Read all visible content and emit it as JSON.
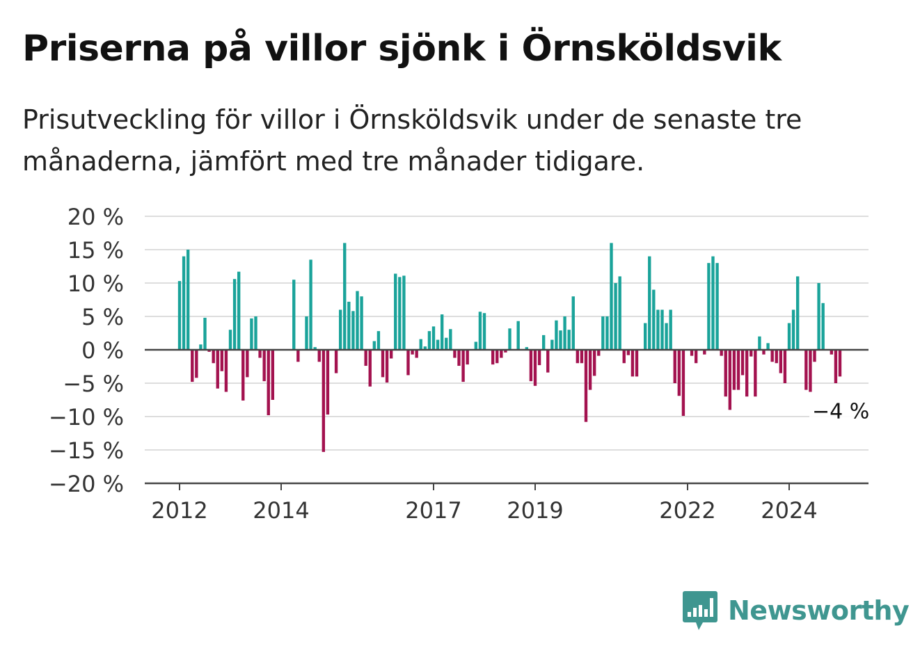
{
  "title": "Priserna på villor sjönk i Örnsköldsvik",
  "subtitle": "Prisutveckling för villor i Örnsköldsvik under de senaste tre månaderna, jämfört med tre månader tidigare.",
  "brand": "Newsworthy",
  "colors": {
    "positive": "#1aa39a",
    "negative": "#a3124f",
    "grid": "#dddddd",
    "axis": "#444444",
    "logo": "#3f9690"
  },
  "chart_data": {
    "type": "bar",
    "ylim": [
      -20,
      20
    ],
    "yticks": [
      20,
      15,
      10,
      5,
      0,
      -5,
      -10,
      -15,
      -20
    ],
    "ytick_labels": [
      "20 %",
      "15 %",
      "10 %",
      "5 %",
      "0 %",
      "−5 %",
      "−10 %",
      "−15 %",
      "−20 %"
    ],
    "xticks": [
      {
        "label": "2012",
        "x": 2012.0
      },
      {
        "label": "2014",
        "x": 2014.0
      },
      {
        "label": "2017",
        "x": 2017.0
      },
      {
        "label": "2019",
        "x": 2019.0
      },
      {
        "label": "2022",
        "x": 2022.0
      },
      {
        "label": "2024",
        "x": 2024.0
      }
    ],
    "x_start": 2012.0,
    "x_step_months": 1,
    "values": [
      10.3,
      14,
      15,
      -4.8,
      -4.2,
      0.8,
      4.8,
      -0.3,
      -2,
      -5.8,
      -3.2,
      -6.3,
      3,
      10.6,
      11.7,
      -7.6,
      -4.1,
      4.7,
      5,
      -1.2,
      -4.7,
      -9.8,
      -7.5,
      0,
      0,
      0,
      0,
      10.5,
      -1.8,
      0,
      5,
      13.5,
      0.4,
      -1.8,
      -15.3,
      -9.7,
      0,
      -3.5,
      6,
      16,
      7.2,
      5.8,
      8.8,
      8,
      -2.4,
      -5.5,
      1.3,
      2.8,
      -4.1,
      -4.9,
      -1.3,
      11.4,
      10.9,
      11.1,
      -3.8,
      -0.7,
      -1.2,
      1.6,
      0.5,
      2.8,
      3.5,
      1.5,
      5.3,
      1.8,
      3.1,
      -1.2,
      -2.4,
      -4.8,
      -2.2,
      0,
      1.2,
      5.7,
      5.5,
      0,
      -2.2,
      -2,
      -1.2,
      -0.4,
      3.2,
      0,
      4.3,
      0,
      0.4,
      -4.7,
      -5.4,
      -2.3,
      2.2,
      -3.4,
      1.5,
      4.4,
      2.9,
      5,
      3,
      8,
      -2,
      -2,
      -10.8,
      -6,
      -3.9,
      -0.9,
      5,
      5,
      16,
      10,
      11,
      -2,
      -0.8,
      -4,
      -4,
      0,
      4,
      14,
      9,
      6,
      6,
      4,
      6,
      -5,
      -6.9,
      -9.9,
      0,
      -0.9,
      -2,
      0,
      -0.7,
      13,
      14,
      13,
      -0.9,
      -7,
      -9,
      -6,
      -6,
      -3.8,
      -7,
      -1,
      -7,
      2,
      -0.7,
      1,
      -1.8,
      -2,
      -3.5,
      -5,
      4,
      6,
      11,
      0,
      -6,
      -6.3,
      -1.8,
      10,
      7,
      0,
      -0.7,
      -5,
      -4
    ],
    "last_value_label": "−4 %"
  }
}
